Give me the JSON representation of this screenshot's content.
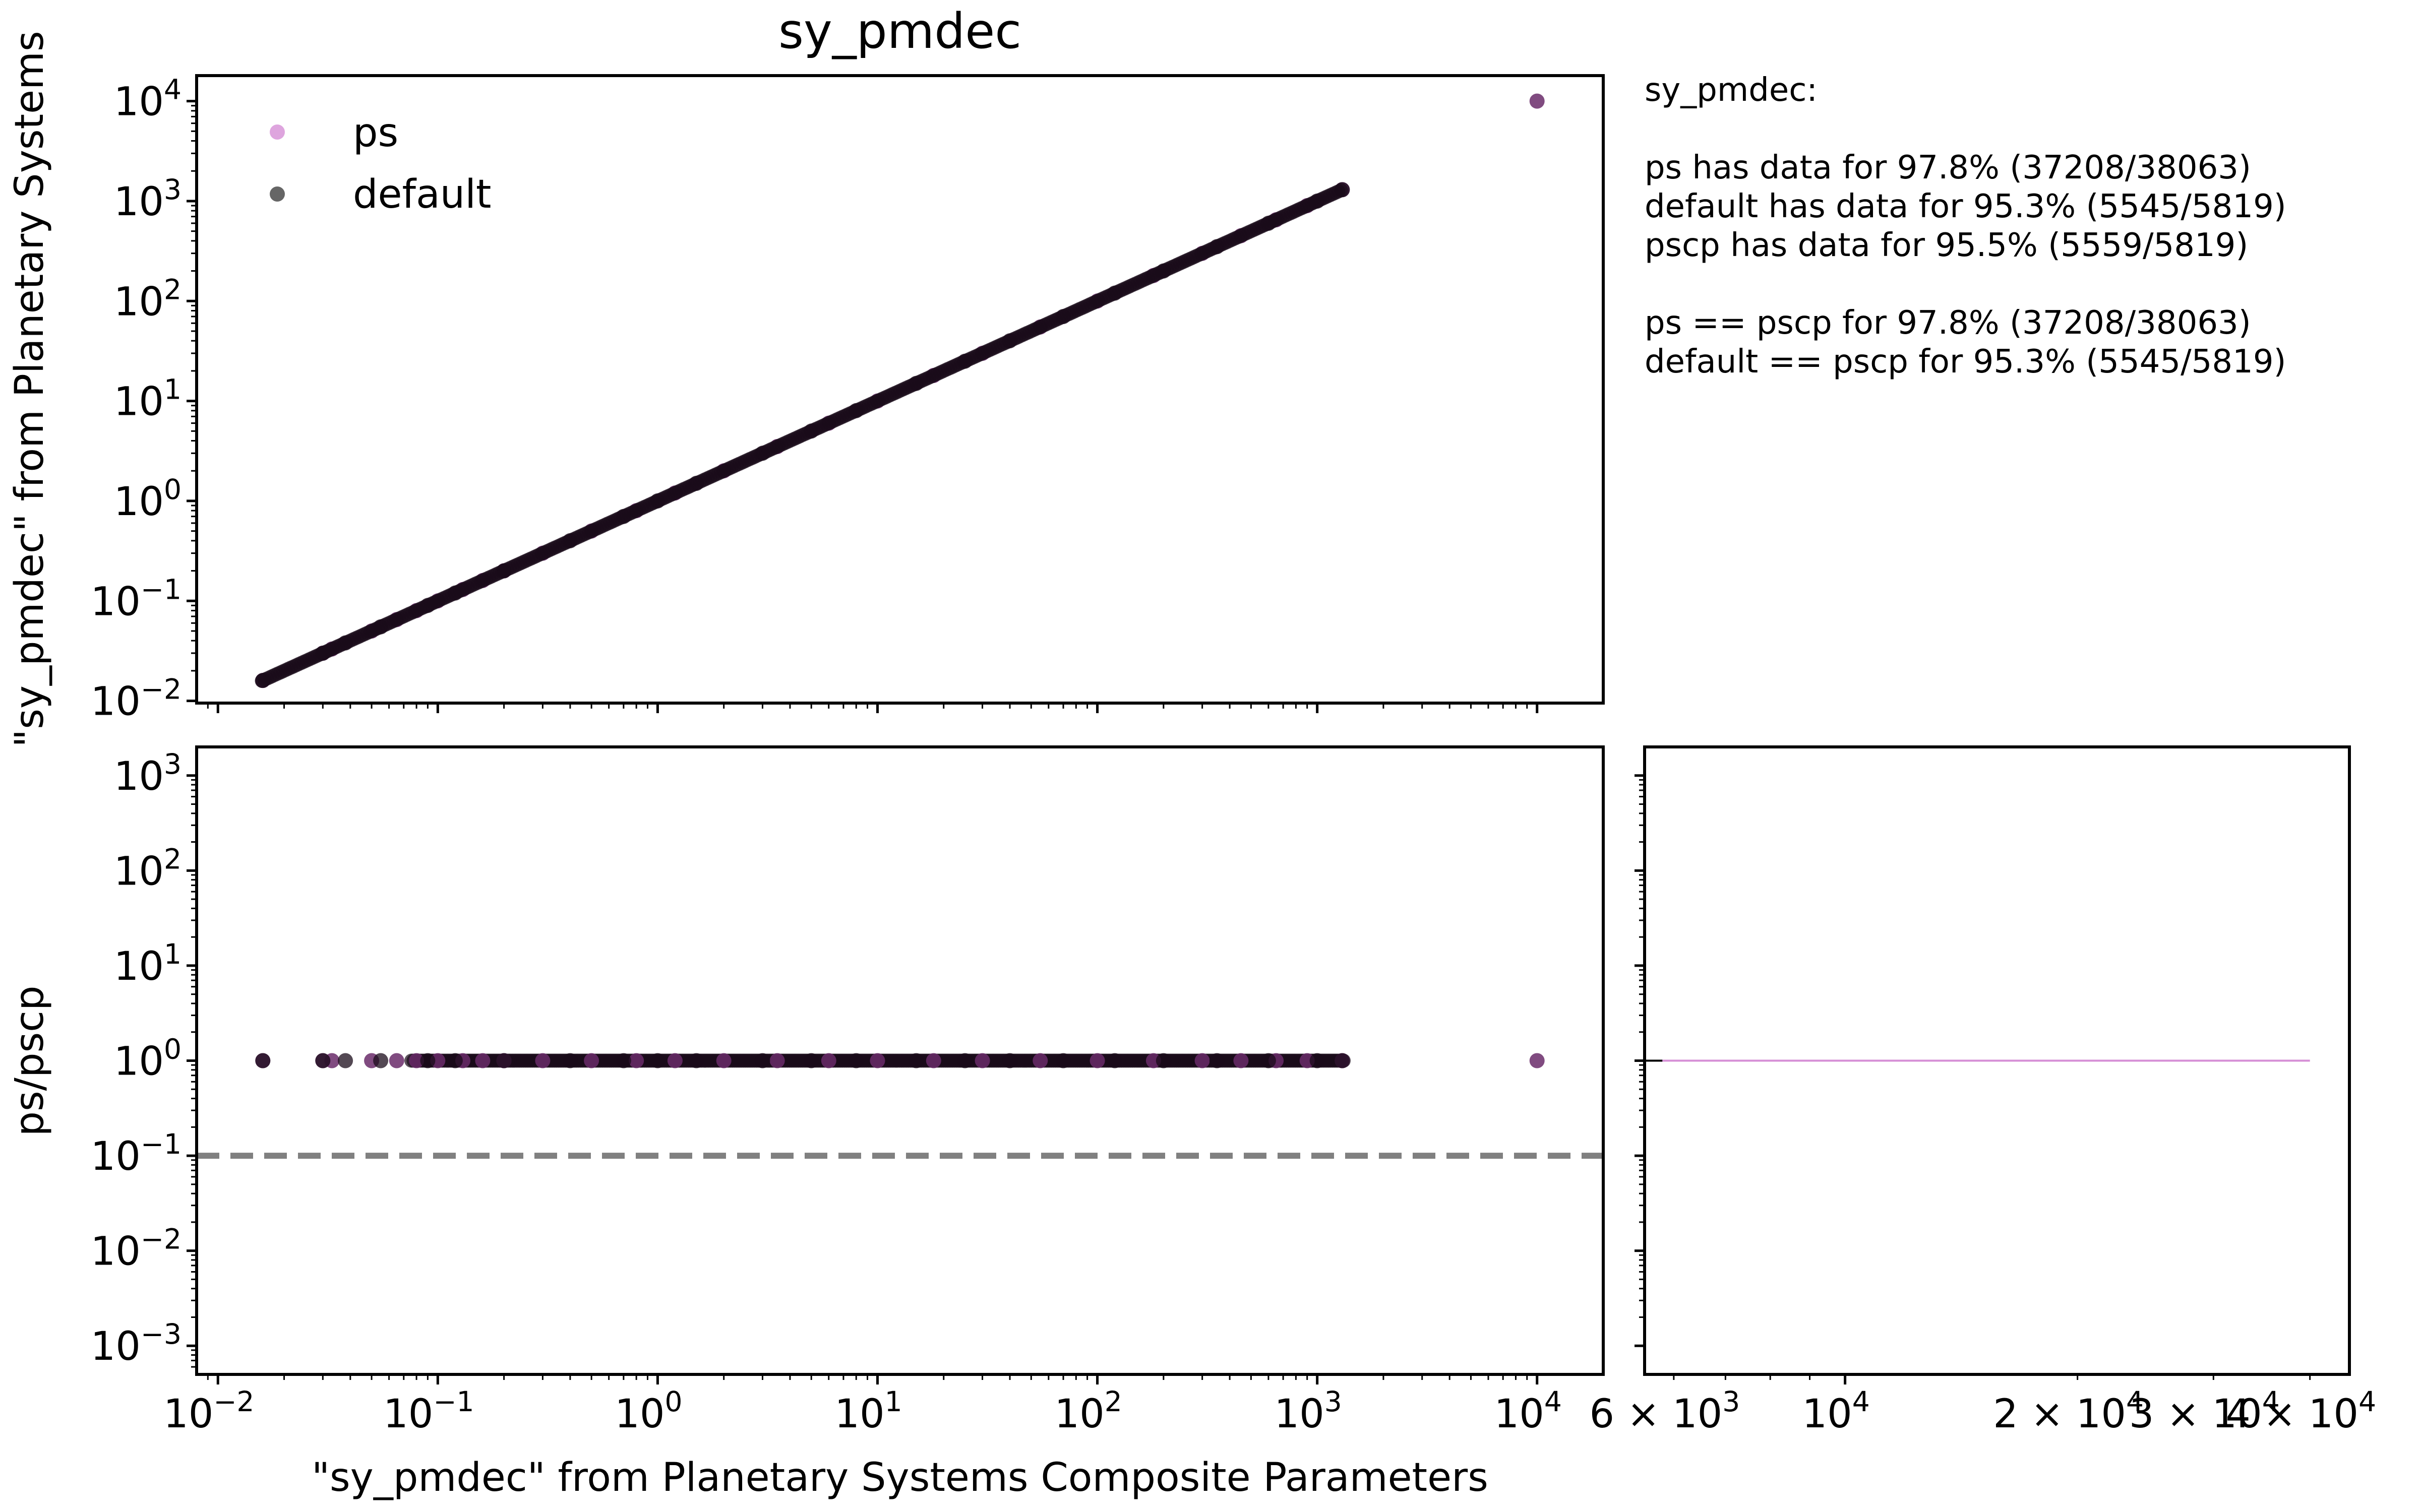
{
  "chart_data": [
    {
      "type": "scatter",
      "title": "sy_pmdec",
      "xlabel": "",
      "ylabel": "\"sy_pmdec\" from Planetary Systems",
      "xscale": "log",
      "yscale": "log",
      "xlim": [
        0.008,
        20000
      ],
      "ylim": [
        0.0095,
        18000
      ],
      "x_ticks": [
        "10",
        "10",
        "10",
        "10",
        "10",
        "10",
        "10"
      ],
      "x_tick_exps": [
        "−2",
        "−1",
        "0",
        "1",
        "2",
        "3",
        "4"
      ],
      "y_ticks": [
        "10",
        "10",
        "10",
        "10",
        "10",
        "10",
        "10"
      ],
      "y_tick_exps": [
        "−2",
        "−1",
        "0",
        "1",
        "2",
        "3",
        "4"
      ],
      "legend": {
        "placement": "upper-left",
        "entries": [
          "ps",
          "default"
        ]
      },
      "series": [
        {
          "name": "ps",
          "color": "#d68fd6",
          "x": [
            0.016,
            0.03,
            0.033,
            0.05,
            0.065,
            0.08,
            0.1,
            0.13,
            0.16,
            0.2,
            0.3,
            0.5,
            0.8,
            1.2,
            2,
            3.5,
            6,
            10,
            18,
            30,
            55,
            100,
            180,
            300,
            450,
            650,
            900,
            1300,
            10000
          ],
          "y": [
            0.016,
            0.03,
            0.033,
            0.05,
            0.065,
            0.08,
            0.1,
            0.13,
            0.16,
            0.2,
            0.3,
            0.5,
            0.8,
            1.2,
            2,
            3.5,
            6,
            10,
            18,
            30,
            55,
            100,
            180,
            300,
            450,
            650,
            900,
            1300,
            10000
          ]
        },
        {
          "name": "default",
          "color": "#000000",
          "x": [
            0.016,
            0.03,
            0.038,
            0.055,
            0.09,
            0.12,
            0.2,
            0.4,
            0.7,
            1,
            1.5,
            3,
            5,
            8,
            15,
            25,
            40,
            70,
            120,
            200,
            350,
            600,
            1000,
            1300
          ],
          "y": [
            0.016,
            0.03,
            0.038,
            0.055,
            0.09,
            0.12,
            0.2,
            0.4,
            0.7,
            1,
            1.5,
            3,
            5,
            8,
            15,
            25,
            40,
            70,
            120,
            200,
            350,
            600,
            1000,
            1300
          ]
        }
      ]
    },
    {
      "type": "scatter",
      "xlabel": "\"sy_pmdec\" from Planetary Systems Composite Parameters",
      "ylabel": "ps/pscp",
      "xscale": "log",
      "yscale": "log",
      "xlim": [
        0.008,
        20000
      ],
      "ylim": [
        0.0005,
        2000
      ],
      "x_ticks": [
        "10",
        "10",
        "10",
        "10",
        "10",
        "10",
        "10"
      ],
      "x_tick_exps": [
        "−2",
        "−1",
        "0",
        "1",
        "2",
        "3",
        "4"
      ],
      "y_ticks": [
        "10",
        "10",
        "10",
        "10",
        "10",
        "10",
        "10"
      ],
      "y_tick_exps": [
        "−3",
        "−2",
        "−1",
        "0",
        "1",
        "2",
        "3"
      ],
      "reference_line": {
        "y": 0.1,
        "style": "dashed",
        "color": "#808080"
      },
      "series": [
        {
          "name": "ps",
          "color": "#d68fd6",
          "x": [
            0.016,
            0.03,
            0.033,
            0.05,
            0.065,
            0.08,
            0.1,
            0.13,
            0.16,
            0.2,
            0.3,
            0.5,
            0.8,
            1.2,
            2,
            3.5,
            6,
            10,
            18,
            30,
            55,
            100,
            180,
            300,
            450,
            650,
            900,
            1300,
            10000
          ],
          "y": [
            1,
            1,
            1,
            1,
            1,
            1,
            1,
            1,
            1,
            1,
            1,
            1,
            1,
            1,
            1,
            1,
            1,
            1,
            1,
            1,
            1,
            1,
            1,
            1,
            1,
            1,
            1,
            1,
            1
          ]
        },
        {
          "name": "default",
          "color": "#000000",
          "x": [
            0.016,
            0.03,
            0.038,
            0.055,
            0.09,
            0.12,
            0.2,
            0.4,
            0.7,
            1,
            1.5,
            3,
            5,
            8,
            15,
            25,
            40,
            70,
            120,
            200,
            350,
            600,
            1000,
            1300
          ],
          "y": [
            1,
            1,
            1,
            1,
            1,
            1,
            1,
            1,
            1,
            1,
            1,
            1,
            1,
            1,
            1,
            1,
            1,
            1,
            1,
            1,
            1,
            1,
            1,
            1
          ]
        }
      ]
    },
    {
      "type": "line",
      "xscale": "log",
      "yscale": "log",
      "xlim": [
        5500,
        45000
      ],
      "ylim": [
        0.0005,
        2000
      ],
      "x_ticks": [
        "6 × 10",
        "10",
        "2 × 10",
        "3 × 10",
        "4 × 10"
      ],
      "x_tick_exps": [
        "3",
        "4",
        "4",
        "4",
        "4"
      ],
      "series": [
        {
          "name": "ps",
          "color": "#d68fd6",
          "x": [
            5800,
            40000
          ],
          "y": [
            1,
            1
          ]
        },
        {
          "name": "default",
          "color": "#000000",
          "x": [
            5500,
            5800
          ],
          "y": [
            1,
            1
          ]
        }
      ]
    }
  ],
  "stats": {
    "lines": [
      "sy_pmdec:",
      "",
      "ps has data for 97.8% (37208/38063)",
      "default has data for 95.3% (5545/5819)",
      "pscp has data for 95.5% (5559/5819)",
      "",
      "ps == pscp  for 97.8% (37208/38063)",
      "default == pscp  for 95.3% (5545/5819)"
    ]
  }
}
